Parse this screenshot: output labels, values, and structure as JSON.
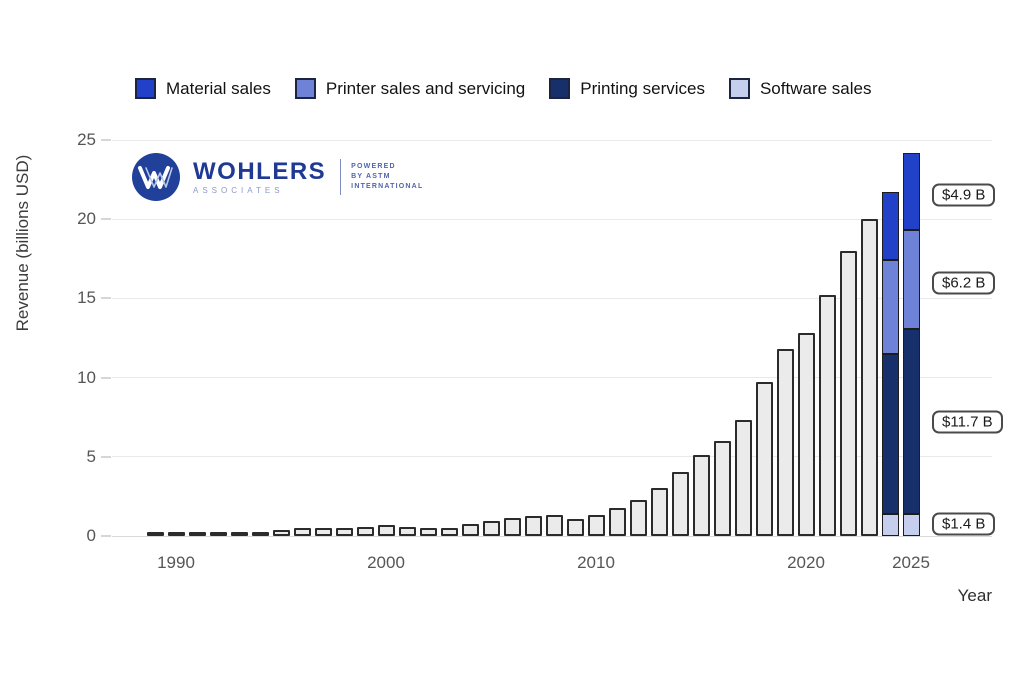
{
  "legend": {
    "items": [
      {
        "label": "Material sales",
        "color": "#2141c8"
      },
      {
        "label": "Printer sales and servicing",
        "color": "#6e82d8"
      },
      {
        "label": "Printing services",
        "color": "#172f6b"
      },
      {
        "label": "Software sales",
        "color": "#c5cfed"
      }
    ]
  },
  "logo": {
    "name": "WOHLERS",
    "subtitle": "ASSOCIATES",
    "powered_line1": "POWERED",
    "powered_line2": "BY ASTM",
    "powered_line3": "INTERNATIONAL"
  },
  "chart_data": {
    "type": "bar",
    "stacked_last_years": true,
    "title": "",
    "xlabel": "Year",
    "ylabel": "Revenue (billions USD)",
    "ylim": [
      0,
      25
    ],
    "yticks": [
      0,
      5,
      10,
      15,
      20,
      25
    ],
    "xticks": [
      1990,
      2000,
      2010,
      2020,
      2025
    ],
    "grid": true,
    "legend_position": "top",
    "bar_fill": "#ebebeb",
    "bar_border": "#2b2b2b",
    "bars": [
      {
        "year": 1989,
        "value": 0.15
      },
      {
        "year": 1990,
        "value": 0.17
      },
      {
        "year": 1991,
        "value": 0.17
      },
      {
        "year": 1992,
        "value": 0.18
      },
      {
        "year": 1993,
        "value": 0.21
      },
      {
        "year": 1994,
        "value": 0.27
      },
      {
        "year": 1995,
        "value": 0.38
      },
      {
        "year": 1996,
        "value": 0.48
      },
      {
        "year": 1997,
        "value": 0.52
      },
      {
        "year": 1998,
        "value": 0.53
      },
      {
        "year": 1999,
        "value": 0.57
      },
      {
        "year": 2000,
        "value": 0.7
      },
      {
        "year": 2001,
        "value": 0.6
      },
      {
        "year": 2002,
        "value": 0.5
      },
      {
        "year": 2003,
        "value": 0.53
      },
      {
        "year": 2004,
        "value": 0.78
      },
      {
        "year": 2005,
        "value": 0.95
      },
      {
        "year": 2006,
        "value": 1.15
      },
      {
        "year": 2007,
        "value": 1.28
      },
      {
        "year": 2008,
        "value": 1.33
      },
      {
        "year": 2009,
        "value": 1.07
      },
      {
        "year": 2010,
        "value": 1.3
      },
      {
        "year": 2011,
        "value": 1.75
      },
      {
        "year": 2012,
        "value": 2.3
      },
      {
        "year": 2013,
        "value": 3.0
      },
      {
        "year": 2014,
        "value": 4.05
      },
      {
        "year": 2015,
        "value": 5.1
      },
      {
        "year": 2016,
        "value": 6.0
      },
      {
        "year": 2017,
        "value": 7.3
      },
      {
        "year": 2018,
        "value": 9.7
      },
      {
        "year": 2019,
        "value": 11.8
      },
      {
        "year": 2020,
        "value": 12.8
      },
      {
        "year": 2021,
        "value": 15.2
      },
      {
        "year": 2022,
        "value": 18.0
      },
      {
        "year": 2023,
        "value": 20.0
      },
      {
        "year": 2024,
        "segments": [
          {
            "name": "Software sales",
            "value": 1.4,
            "color": "#c5cfed"
          },
          {
            "name": "Printing services",
            "value": 10.1,
            "color": "#172f6b"
          },
          {
            "name": "Printer sales and servicing",
            "value": 5.9,
            "color": "#6e82d8"
          },
          {
            "name": "Material sales",
            "value": 4.3,
            "color": "#2141c8"
          }
        ]
      },
      {
        "year": 2025,
        "segments": [
          {
            "name": "Software sales",
            "value": 1.4,
            "color": "#c5cfed"
          },
          {
            "name": "Printing services",
            "value": 11.7,
            "color": "#172f6b"
          },
          {
            "name": "Printer sales and servicing",
            "value": 6.2,
            "color": "#6e82d8"
          },
          {
            "name": "Material sales",
            "value": 4.9,
            "color": "#2141c8"
          }
        ]
      }
    ],
    "annotations": [
      {
        "label": "$4.9 B",
        "value_anchor": 21.5
      },
      {
        "label": "$6.2 B",
        "value_anchor": 16.0
      },
      {
        "label": "$11.7 B",
        "value_anchor": 7.2
      },
      {
        "label": "$1.4 B",
        "value_anchor": 0.76
      }
    ]
  }
}
